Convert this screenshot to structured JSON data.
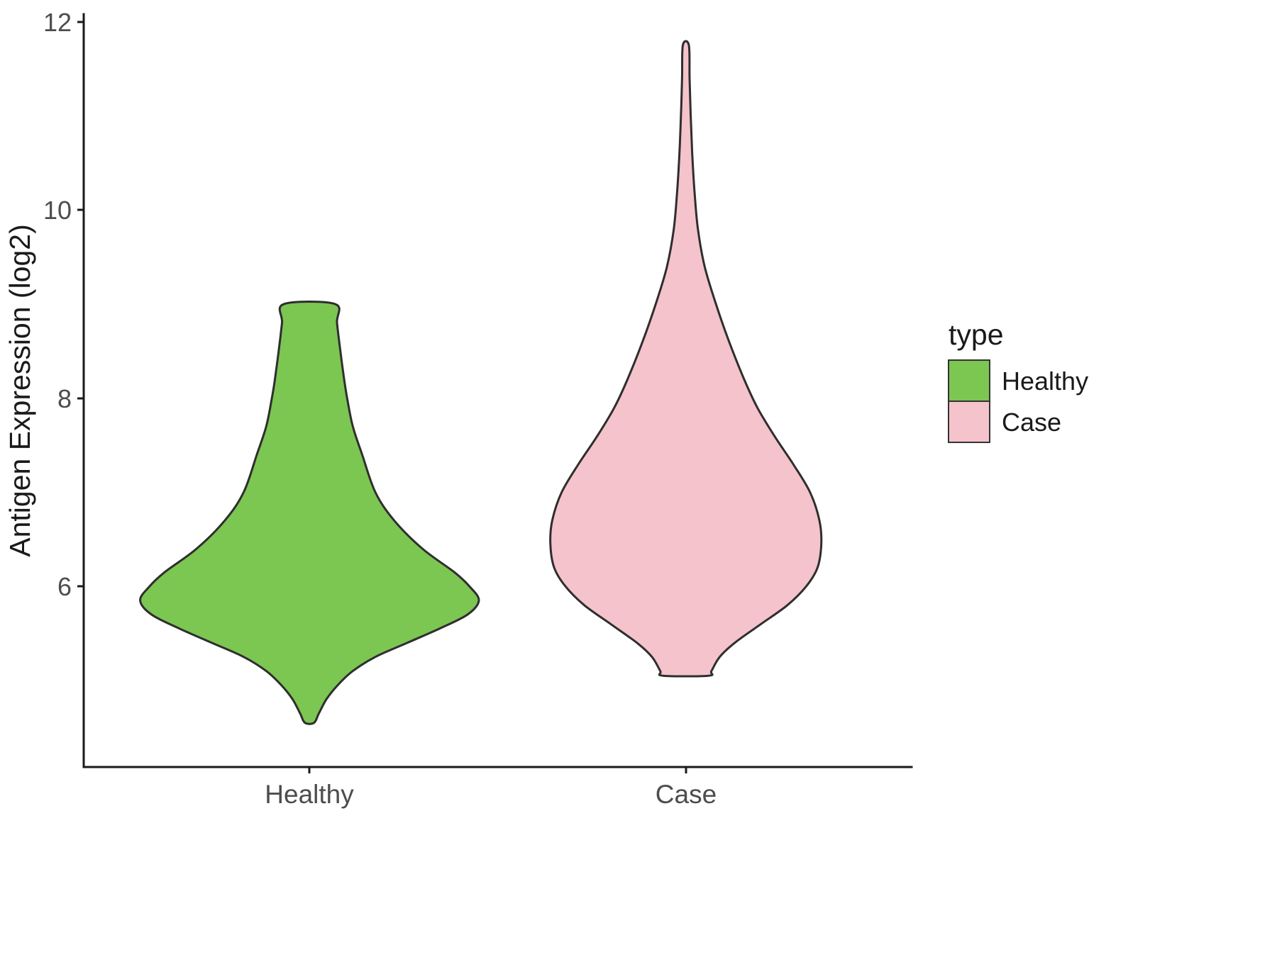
{
  "figure": {
    "background": "#ffffff",
    "axis_color": "#1a1a1a",
    "tick_text_color": "#4d4d4d",
    "outline_color": "#2e2e2e"
  },
  "chart_data": {
    "type": "violin",
    "title": "",
    "xlabel": "",
    "ylabel": "Antigen Expression (log2)",
    "categories": [
      "Healthy",
      "Case"
    ],
    "y_ticks": [
      12,
      10,
      8,
      6
    ],
    "y_domain": [
      4.08,
      12.08
    ],
    "x_domain": [
      0.4,
      2.6
    ],
    "grid": "off",
    "legend": {
      "title": "type",
      "position": "right",
      "entries": [
        {
          "label": "Healthy",
          "color": "#7cc652"
        },
        {
          "label": "Case",
          "color": "#f5c3cb"
        }
      ]
    },
    "series": [
      {
        "name": "Healthy",
        "x": 1,
        "fill": "#7cc652",
        "stroke": "#2e2e2e",
        "summary": {
          "min": 4.55,
          "max": 9.0,
          "peak_density_at": 5.85
        },
        "profile": [
          [
            9.0,
            0.068
          ],
          [
            8.8,
            0.073
          ],
          [
            8.5,
            0.082
          ],
          [
            8.2,
            0.092
          ],
          [
            8.0,
            0.1
          ],
          [
            7.7,
            0.115
          ],
          [
            7.4,
            0.14
          ],
          [
            7.0,
            0.175
          ],
          [
            6.7,
            0.225
          ],
          [
            6.4,
            0.3
          ],
          [
            6.15,
            0.385
          ],
          [
            6.0,
            0.425
          ],
          [
            5.85,
            0.45
          ],
          [
            5.7,
            0.42
          ],
          [
            5.55,
            0.345
          ],
          [
            5.4,
            0.26
          ],
          [
            5.25,
            0.175
          ],
          [
            5.1,
            0.115
          ],
          [
            4.95,
            0.075
          ],
          [
            4.8,
            0.045
          ],
          [
            4.65,
            0.025
          ],
          [
            4.55,
            0.012
          ]
        ]
      },
      {
        "name": "Case",
        "x": 2,
        "fill": "#f5c3cb",
        "stroke": "#2e2e2e",
        "summary": {
          "min": 5.05,
          "max": 11.75,
          "peak_density_at": 6.45
        },
        "profile": [
          [
            11.75,
            0.008
          ],
          [
            11.4,
            0.01
          ],
          [
            11.0,
            0.013
          ],
          [
            10.6,
            0.017
          ],
          [
            10.2,
            0.023
          ],
          [
            9.8,
            0.032
          ],
          [
            9.4,
            0.05
          ],
          [
            9.0,
            0.08
          ],
          [
            8.6,
            0.115
          ],
          [
            8.2,
            0.155
          ],
          [
            7.9,
            0.19
          ],
          [
            7.6,
            0.235
          ],
          [
            7.3,
            0.285
          ],
          [
            7.0,
            0.33
          ],
          [
            6.7,
            0.355
          ],
          [
            6.45,
            0.36
          ],
          [
            6.2,
            0.35
          ],
          [
            6.0,
            0.32
          ],
          [
            5.8,
            0.27
          ],
          [
            5.6,
            0.2
          ],
          [
            5.4,
            0.13
          ],
          [
            5.25,
            0.09
          ],
          [
            5.1,
            0.068
          ],
          [
            5.05,
            0.06
          ]
        ]
      }
    ]
  }
}
